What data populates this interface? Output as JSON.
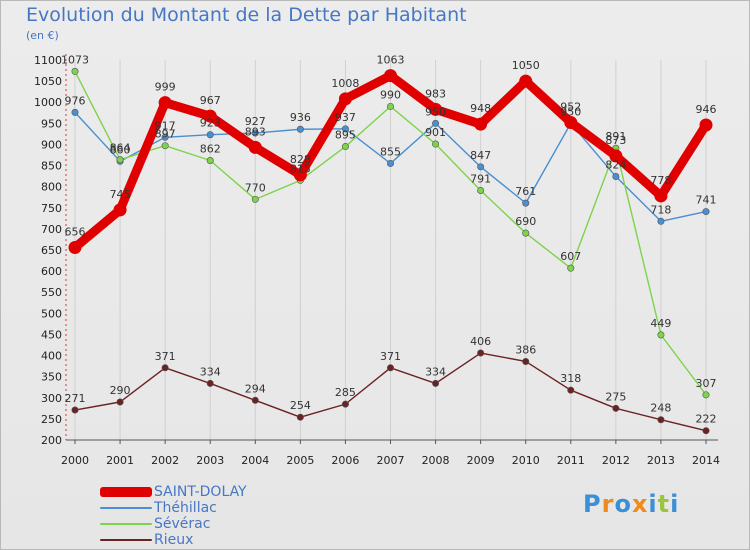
{
  "header": {
    "title": "Evolution du Montant de la Dette par Habitant",
    "subtitle": "(en €)"
  },
  "brand": {
    "text": "Proxiti",
    "letter_colors": [
      "#3a8fd8",
      "#f08a1c",
      "#3a8fd8",
      "#f08a1c",
      "#3a8fd8",
      "#9bc53d",
      "#3a8fd8"
    ]
  },
  "chart_data": {
    "type": "line",
    "title": "Evolution du Montant de la Dette par Habitant",
    "subtitle": "(en €)",
    "xlabel": "",
    "ylabel": "",
    "x": [
      "2000",
      "2001",
      "2002",
      "2003",
      "2004",
      "2005",
      "2006",
      "2007",
      "2008",
      "2009",
      "2010",
      "2011",
      "2012",
      "2013",
      "2014"
    ],
    "ylim": [
      200,
      1100
    ],
    "yticks": [
      200,
      250,
      300,
      350,
      400,
      450,
      500,
      550,
      600,
      650,
      700,
      750,
      800,
      850,
      900,
      950,
      1000,
      1050,
      1100
    ],
    "grid": "vertical-only",
    "legend_position": "bottom-left",
    "series": [
      {
        "name": "SAINT-DOLAY",
        "color": "#e00000",
        "values": [
          656,
          745,
          999,
          967,
          893,
          828,
          1008,
          1063,
          983,
          948,
          1050,
          952,
          873,
          778,
          946
        ],
        "labels": [
          "656",
          "745",
          "999",
          "967",
          "893",
          "828",
          "1008",
          "1063",
          "983",
          "948",
          "1050",
          "952",
          "873",
          "778",
          "946"
        ],
        "emphasis": true
      },
      {
        "name": "Théhillac",
        "color": "#4a8fd0",
        "values": [
          976,
          860,
          917,
          923,
          927,
          936,
          937,
          855,
          950,
          847,
          761,
          950,
          824,
          718,
          741
        ],
        "labels": [
          "976",
          "860",
          "917",
          "923",
          "927",
          "936",
          "937",
          "855",
          "950",
          "847",
          "761",
          "950",
          "824",
          "718",
          "741"
        ]
      },
      {
        "name": "Sévérac",
        "color": "#7dd34a",
        "values": [
          1073,
          864,
          897,
          862,
          770,
          815,
          895,
          990,
          901,
          791,
          690,
          607,
          891,
          449,
          307
        ],
        "labels": [
          "1073",
          "864",
          "897",
          "862",
          "770",
          "815",
          "895",
          "990",
          "901",
          "791",
          "690",
          "607",
          "891",
          "449",
          "307"
        ]
      },
      {
        "name": "Rieux",
        "color": "#6b2222",
        "values": [
          271,
          290,
          371,
          334,
          294,
          254,
          285,
          371,
          334,
          406,
          386,
          318,
          275,
          248,
          222
        ],
        "labels": [
          "271",
          "290",
          "371",
          "334",
          "294",
          "254",
          "285",
          "371",
          "334",
          "406",
          "386",
          "318",
          "275",
          "248",
          "222"
        ]
      }
    ]
  }
}
